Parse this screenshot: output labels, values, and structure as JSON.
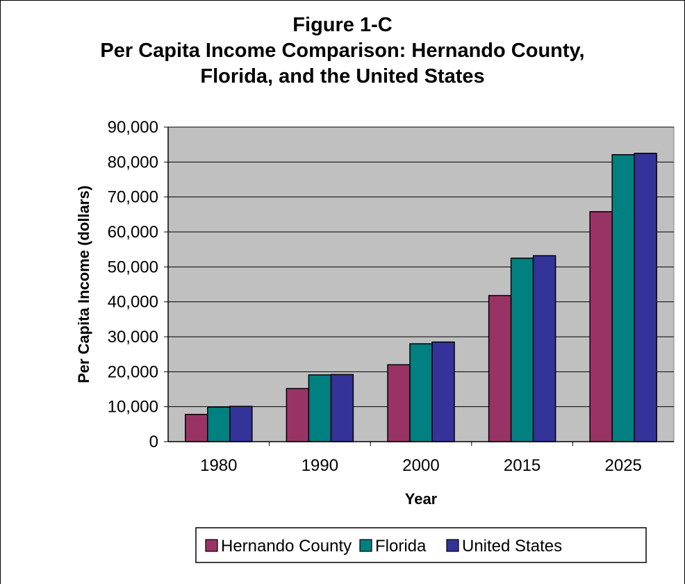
{
  "chart_data": {
    "type": "bar",
    "title_lines": [
      "Figure 1-C",
      "Per Capita Income Comparison: Hernando County,",
      "Florida, and the United States"
    ],
    "xlabel": "Year",
    "ylabel": "Per Capita Income (dollars)",
    "categories": [
      "1980",
      "1990",
      "2000",
      "2015",
      "2025"
    ],
    "ylim": [
      0,
      90000
    ],
    "y_ticks": [
      0,
      10000,
      20000,
      30000,
      40000,
      50000,
      60000,
      70000,
      80000,
      90000
    ],
    "y_tick_labels": [
      "0",
      "10,000",
      "20,000",
      "30,000",
      "40,000",
      "50,000",
      "60,000",
      "70,000",
      "80,000",
      "90,000"
    ],
    "grid": true,
    "legend_position": "bottom",
    "plot_background": "#c0c0c0",
    "series": [
      {
        "name": "Hernando County",
        "color": "#993366",
        "values": [
          7800,
          15200,
          22000,
          41800,
          65800
        ]
      },
      {
        "name": "Florida",
        "color": "#008080",
        "values": [
          9900,
          19100,
          28000,
          52500,
          82100
        ]
      },
      {
        "name": "United States",
        "color": "#333399",
        "values": [
          10100,
          19200,
          28500,
          53200,
          82500
        ]
      }
    ]
  }
}
